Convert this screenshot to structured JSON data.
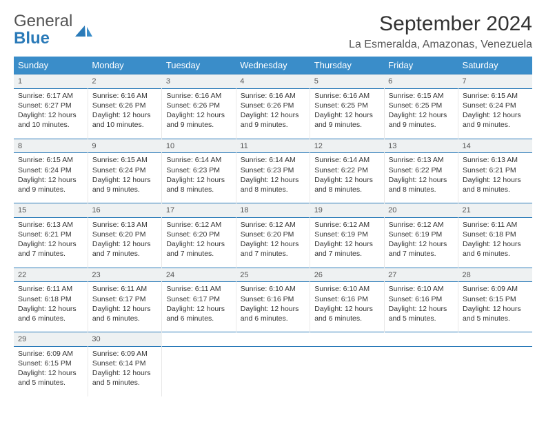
{
  "brand": {
    "word1": "General",
    "word2": "Blue"
  },
  "title": "September 2024",
  "subtitle": "La Esmeralda, Amazonas, Venezuela",
  "colors": {
    "header_bg": "#3a8dc9",
    "header_text": "#ffffff",
    "row_rule": "#2a7ab8",
    "daynum_bg": "#eef1f2",
    "cell_border": "#e8e8e8",
    "brand_gray": "#555555",
    "brand_blue": "#2a7ab8",
    "body_text": "#333333",
    "background": "#ffffff"
  },
  "font": {
    "family": "Arial",
    "day_text_size_pt": 8,
    "header_size_pt": 10,
    "title_size_pt": 22
  },
  "weekdays": [
    "Sunday",
    "Monday",
    "Tuesday",
    "Wednesday",
    "Thursday",
    "Friday",
    "Saturday"
  ],
  "weeks": [
    [
      {
        "day": "1",
        "sunrise": "Sunrise: 6:17 AM",
        "sunset": "Sunset: 6:27 PM",
        "daylight1": "Daylight: 12 hours",
        "daylight2": "and 10 minutes."
      },
      {
        "day": "2",
        "sunrise": "Sunrise: 6:16 AM",
        "sunset": "Sunset: 6:26 PM",
        "daylight1": "Daylight: 12 hours",
        "daylight2": "and 10 minutes."
      },
      {
        "day": "3",
        "sunrise": "Sunrise: 6:16 AM",
        "sunset": "Sunset: 6:26 PM",
        "daylight1": "Daylight: 12 hours",
        "daylight2": "and 9 minutes."
      },
      {
        "day": "4",
        "sunrise": "Sunrise: 6:16 AM",
        "sunset": "Sunset: 6:26 PM",
        "daylight1": "Daylight: 12 hours",
        "daylight2": "and 9 minutes."
      },
      {
        "day": "5",
        "sunrise": "Sunrise: 6:16 AM",
        "sunset": "Sunset: 6:25 PM",
        "daylight1": "Daylight: 12 hours",
        "daylight2": "and 9 minutes."
      },
      {
        "day": "6",
        "sunrise": "Sunrise: 6:15 AM",
        "sunset": "Sunset: 6:25 PM",
        "daylight1": "Daylight: 12 hours",
        "daylight2": "and 9 minutes."
      },
      {
        "day": "7",
        "sunrise": "Sunrise: 6:15 AM",
        "sunset": "Sunset: 6:24 PM",
        "daylight1": "Daylight: 12 hours",
        "daylight2": "and 9 minutes."
      }
    ],
    [
      {
        "day": "8",
        "sunrise": "Sunrise: 6:15 AM",
        "sunset": "Sunset: 6:24 PM",
        "daylight1": "Daylight: 12 hours",
        "daylight2": "and 9 minutes."
      },
      {
        "day": "9",
        "sunrise": "Sunrise: 6:15 AM",
        "sunset": "Sunset: 6:24 PM",
        "daylight1": "Daylight: 12 hours",
        "daylight2": "and 9 minutes."
      },
      {
        "day": "10",
        "sunrise": "Sunrise: 6:14 AM",
        "sunset": "Sunset: 6:23 PM",
        "daylight1": "Daylight: 12 hours",
        "daylight2": "and 8 minutes."
      },
      {
        "day": "11",
        "sunrise": "Sunrise: 6:14 AM",
        "sunset": "Sunset: 6:23 PM",
        "daylight1": "Daylight: 12 hours",
        "daylight2": "and 8 minutes."
      },
      {
        "day": "12",
        "sunrise": "Sunrise: 6:14 AM",
        "sunset": "Sunset: 6:22 PM",
        "daylight1": "Daylight: 12 hours",
        "daylight2": "and 8 minutes."
      },
      {
        "day": "13",
        "sunrise": "Sunrise: 6:13 AM",
        "sunset": "Sunset: 6:22 PM",
        "daylight1": "Daylight: 12 hours",
        "daylight2": "and 8 minutes."
      },
      {
        "day": "14",
        "sunrise": "Sunrise: 6:13 AM",
        "sunset": "Sunset: 6:21 PM",
        "daylight1": "Daylight: 12 hours",
        "daylight2": "and 8 minutes."
      }
    ],
    [
      {
        "day": "15",
        "sunrise": "Sunrise: 6:13 AM",
        "sunset": "Sunset: 6:21 PM",
        "daylight1": "Daylight: 12 hours",
        "daylight2": "and 7 minutes."
      },
      {
        "day": "16",
        "sunrise": "Sunrise: 6:13 AM",
        "sunset": "Sunset: 6:20 PM",
        "daylight1": "Daylight: 12 hours",
        "daylight2": "and 7 minutes."
      },
      {
        "day": "17",
        "sunrise": "Sunrise: 6:12 AM",
        "sunset": "Sunset: 6:20 PM",
        "daylight1": "Daylight: 12 hours",
        "daylight2": "and 7 minutes."
      },
      {
        "day": "18",
        "sunrise": "Sunrise: 6:12 AM",
        "sunset": "Sunset: 6:20 PM",
        "daylight1": "Daylight: 12 hours",
        "daylight2": "and 7 minutes."
      },
      {
        "day": "19",
        "sunrise": "Sunrise: 6:12 AM",
        "sunset": "Sunset: 6:19 PM",
        "daylight1": "Daylight: 12 hours",
        "daylight2": "and 7 minutes."
      },
      {
        "day": "20",
        "sunrise": "Sunrise: 6:12 AM",
        "sunset": "Sunset: 6:19 PM",
        "daylight1": "Daylight: 12 hours",
        "daylight2": "and 7 minutes."
      },
      {
        "day": "21",
        "sunrise": "Sunrise: 6:11 AM",
        "sunset": "Sunset: 6:18 PM",
        "daylight1": "Daylight: 12 hours",
        "daylight2": "and 6 minutes."
      }
    ],
    [
      {
        "day": "22",
        "sunrise": "Sunrise: 6:11 AM",
        "sunset": "Sunset: 6:18 PM",
        "daylight1": "Daylight: 12 hours",
        "daylight2": "and 6 minutes."
      },
      {
        "day": "23",
        "sunrise": "Sunrise: 6:11 AM",
        "sunset": "Sunset: 6:17 PM",
        "daylight1": "Daylight: 12 hours",
        "daylight2": "and 6 minutes."
      },
      {
        "day": "24",
        "sunrise": "Sunrise: 6:11 AM",
        "sunset": "Sunset: 6:17 PM",
        "daylight1": "Daylight: 12 hours",
        "daylight2": "and 6 minutes."
      },
      {
        "day": "25",
        "sunrise": "Sunrise: 6:10 AM",
        "sunset": "Sunset: 6:16 PM",
        "daylight1": "Daylight: 12 hours",
        "daylight2": "and 6 minutes."
      },
      {
        "day": "26",
        "sunrise": "Sunrise: 6:10 AM",
        "sunset": "Sunset: 6:16 PM",
        "daylight1": "Daylight: 12 hours",
        "daylight2": "and 6 minutes."
      },
      {
        "day": "27",
        "sunrise": "Sunrise: 6:10 AM",
        "sunset": "Sunset: 6:16 PM",
        "daylight1": "Daylight: 12 hours",
        "daylight2": "and 5 minutes."
      },
      {
        "day": "28",
        "sunrise": "Sunrise: 6:09 AM",
        "sunset": "Sunset: 6:15 PM",
        "daylight1": "Daylight: 12 hours",
        "daylight2": "and 5 minutes."
      }
    ],
    [
      {
        "day": "29",
        "sunrise": "Sunrise: 6:09 AM",
        "sunset": "Sunset: 6:15 PM",
        "daylight1": "Daylight: 12 hours",
        "daylight2": "and 5 minutes."
      },
      {
        "day": "30",
        "sunrise": "Sunrise: 6:09 AM",
        "sunset": "Sunset: 6:14 PM",
        "daylight1": "Daylight: 12 hours",
        "daylight2": "and 5 minutes."
      },
      null,
      null,
      null,
      null,
      null
    ]
  ]
}
